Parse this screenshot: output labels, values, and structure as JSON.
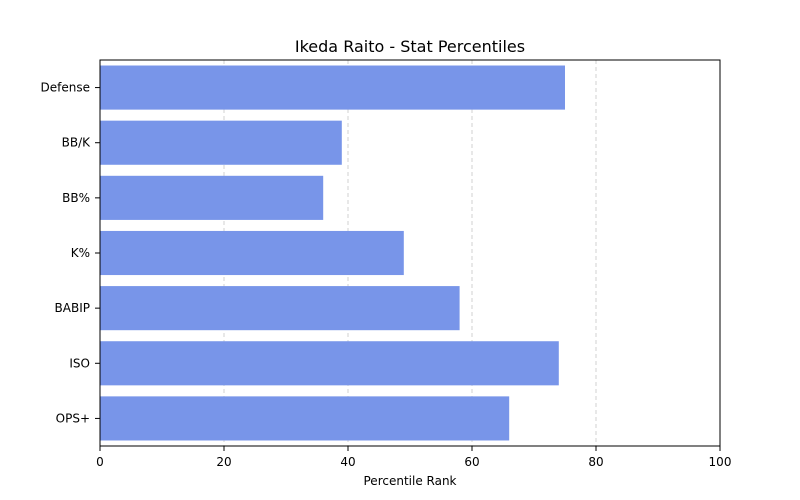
{
  "chart_data": {
    "type": "bar",
    "orientation": "horizontal",
    "title": "Ikeda Raito - Stat Percentiles",
    "xlabel": "Percentile Rank",
    "ylabel": "",
    "categories": [
      "Defense",
      "BB/K",
      "BB%",
      "K%",
      "BABIP",
      "ISO",
      "OPS+"
    ],
    "values": [
      75,
      39,
      36,
      49,
      58,
      74,
      66
    ],
    "xlim": [
      0,
      100
    ],
    "xticks": [
      "0",
      "20",
      "40",
      "60",
      "80",
      "100"
    ],
    "grid": "x-dashed",
    "bar_color": "#7895e9"
  }
}
